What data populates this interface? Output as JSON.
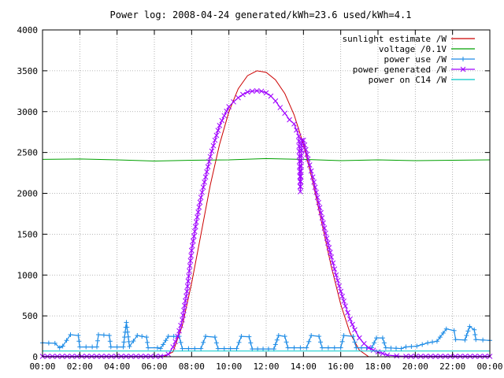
{
  "chart_data": {
    "type": "line",
    "title": "Power log: 2008-04-24 generated/kWh=23.6 used/kWh=4.1",
    "xlabel": "",
    "ylabel": "",
    "x_range": [
      "00:00",
      "24:00"
    ],
    "ylim": [
      0,
      4000
    ],
    "x_ticks": [
      "00:00",
      "02:00",
      "04:00",
      "06:00",
      "08:00",
      "10:00",
      "12:00",
      "14:00",
      "16:00",
      "18:00",
      "20:00",
      "22:00",
      "00:00"
    ],
    "y_ticks": [
      "0",
      "500",
      "1000",
      "1500",
      "2000",
      "2500",
      "3000",
      "3500",
      "4000"
    ],
    "grid": true,
    "legend_position": "top-right",
    "series": [
      {
        "name": "sunlight estimate /W",
        "color": "#cc0000",
        "style": "line",
        "points": [
          [
            "00:00",
            0
          ],
          [
            "06:30",
            0
          ],
          [
            "07:00",
            60
          ],
          [
            "07:30",
            380
          ],
          [
            "08:00",
            900
          ],
          [
            "08:30",
            1500
          ],
          [
            "09:00",
            2100
          ],
          [
            "09:30",
            2600
          ],
          [
            "10:00",
            3000
          ],
          [
            "10:30",
            3280
          ],
          [
            "11:00",
            3440
          ],
          [
            "11:30",
            3500
          ],
          [
            "12:00",
            3480
          ],
          [
            "12:30",
            3390
          ],
          [
            "13:00",
            3220
          ],
          [
            "13:30",
            2960
          ],
          [
            "14:00",
            2600
          ],
          [
            "14:30",
            2140
          ],
          [
            "15:00",
            1620
          ],
          [
            "15:30",
            1100
          ],
          [
            "16:00",
            640
          ],
          [
            "16:30",
            290
          ],
          [
            "17:00",
            80
          ],
          [
            "17:30",
            0
          ],
          [
            "24:00",
            0
          ]
        ]
      },
      {
        "name": "voltage /0.1V",
        "color": "#00a000",
        "style": "line",
        "points": [
          [
            "00:00",
            2415
          ],
          [
            "02:00",
            2420
          ],
          [
            "04:00",
            2410
          ],
          [
            "06:00",
            2395
          ],
          [
            "08:00",
            2405
          ],
          [
            "10:00",
            2410
          ],
          [
            "12:00",
            2425
          ],
          [
            "14:00",
            2415
          ],
          [
            "16:00",
            2400
          ],
          [
            "18:00",
            2410
          ],
          [
            "20:00",
            2400
          ],
          [
            "22:00",
            2405
          ],
          [
            "24:00",
            2410
          ]
        ]
      },
      {
        "name": "power use /W",
        "color": "#1e8ce6",
        "style": "linespoints",
        "points": [
          [
            "00:00",
            170
          ],
          [
            "00:40",
            165
          ],
          [
            "00:55",
            110
          ],
          [
            "01:05",
            130
          ],
          [
            "01:30",
            270
          ],
          [
            "01:55",
            260
          ],
          [
            "02:00",
            120
          ],
          [
            "02:40",
            120
          ],
          [
            "02:55",
            120
          ],
          [
            "03:00",
            270
          ],
          [
            "03:35",
            260
          ],
          [
            "03:40",
            120
          ],
          [
            "04:20",
            120
          ],
          [
            "04:30",
            420
          ],
          [
            "04:40",
            125
          ],
          [
            "05:05",
            260
          ],
          [
            "05:35",
            240
          ],
          [
            "05:40",
            110
          ],
          [
            "06:10",
            110
          ],
          [
            "06:20",
            100
          ],
          [
            "06:45",
            250
          ],
          [
            "07:20",
            250
          ],
          [
            "07:30",
            100
          ],
          [
            "08:30",
            100
          ],
          [
            "08:45",
            250
          ],
          [
            "09:15",
            240
          ],
          [
            "09:25",
            100
          ],
          [
            "10:25",
            100
          ],
          [
            "10:40",
            250
          ],
          [
            "11:05",
            245
          ],
          [
            "11:15",
            95
          ],
          [
            "12:25",
            95
          ],
          [
            "12:40",
            260
          ],
          [
            "13:00",
            250
          ],
          [
            "13:10",
            110
          ],
          [
            "14:10",
            110
          ],
          [
            "14:25",
            260
          ],
          [
            "14:50",
            250
          ],
          [
            "15:00",
            110
          ],
          [
            "16:00",
            110
          ],
          [
            "16:10",
            260
          ],
          [
            "16:40",
            250
          ],
          [
            "16:50",
            110
          ],
          [
            "17:40",
            110
          ],
          [
            "17:55",
            230
          ],
          [
            "18:15",
            230
          ],
          [
            "18:25",
            110
          ],
          [
            "19:15",
            100
          ],
          [
            "19:30",
            120
          ],
          [
            "20:05",
            130
          ],
          [
            "20:40",
            170
          ],
          [
            "21:10",
            190
          ],
          [
            "21:40",
            340
          ],
          [
            "22:05",
            320
          ],
          [
            "22:10",
            210
          ],
          [
            "22:40",
            205
          ],
          [
            "22:55",
            370
          ],
          [
            "23:10",
            330
          ],
          [
            "23:15",
            210
          ],
          [
            "24:00",
            200
          ]
        ]
      },
      {
        "name": "power generated /W",
        "color": "#a000ff",
        "style": "linespoints",
        "points": [
          [
            "00:00",
            5
          ],
          [
            "06:20",
            5
          ],
          [
            "06:45",
            30
          ],
          [
            "07:00",
            120
          ],
          [
            "07:15",
            250
          ],
          [
            "07:30",
            450
          ],
          [
            "07:45",
            800
          ],
          [
            "08:00",
            1300
          ],
          [
            "08:15",
            1650
          ],
          [
            "08:30",
            1950
          ],
          [
            "08:45",
            2200
          ],
          [
            "09:00",
            2450
          ],
          [
            "09:15",
            2650
          ],
          [
            "09:30",
            2830
          ],
          [
            "09:45",
            2950
          ],
          [
            "10:00",
            3060
          ],
          [
            "10:15",
            3120
          ],
          [
            "10:30",
            3170
          ],
          [
            "10:45",
            3210
          ],
          [
            "11:00",
            3240
          ],
          [
            "11:15",
            3250
          ],
          [
            "11:30",
            3255
          ],
          [
            "11:45",
            3250
          ],
          [
            "12:00",
            3230
          ],
          [
            "12:15",
            3190
          ],
          [
            "12:30",
            3130
          ],
          [
            "12:45",
            3050
          ],
          [
            "13:00",
            2980
          ],
          [
            "13:15",
            2900
          ],
          [
            "13:30",
            2850
          ],
          [
            "13:45",
            2700
          ],
          [
            "13:50",
            2020
          ],
          [
            "13:55",
            2650
          ],
          [
            "14:00",
            2650
          ],
          [
            "14:15",
            2420
          ],
          [
            "14:30",
            2200
          ],
          [
            "14:45",
            1950
          ],
          [
            "15:00",
            1700
          ],
          [
            "15:15",
            1450
          ],
          [
            "15:30",
            1220
          ],
          [
            "15:45",
            1000
          ],
          [
            "16:00",
            800
          ],
          [
            "16:15",
            620
          ],
          [
            "16:30",
            460
          ],
          [
            "16:45",
            330
          ],
          [
            "17:00",
            230
          ],
          [
            "17:15",
            160
          ],
          [
            "17:30",
            110
          ],
          [
            "17:45",
            80
          ],
          [
            "18:00",
            60
          ],
          [
            "18:15",
            40
          ],
          [
            "18:30",
            20
          ],
          [
            "19:00",
            10
          ],
          [
            "19:30",
            5
          ],
          [
            "24:00",
            5
          ]
        ]
      },
      {
        "name": "power on C14 /W",
        "color": "#00c8c8",
        "style": "line",
        "points": [
          [
            "00:00",
            70
          ],
          [
            "24:00",
            70
          ]
        ]
      }
    ]
  }
}
